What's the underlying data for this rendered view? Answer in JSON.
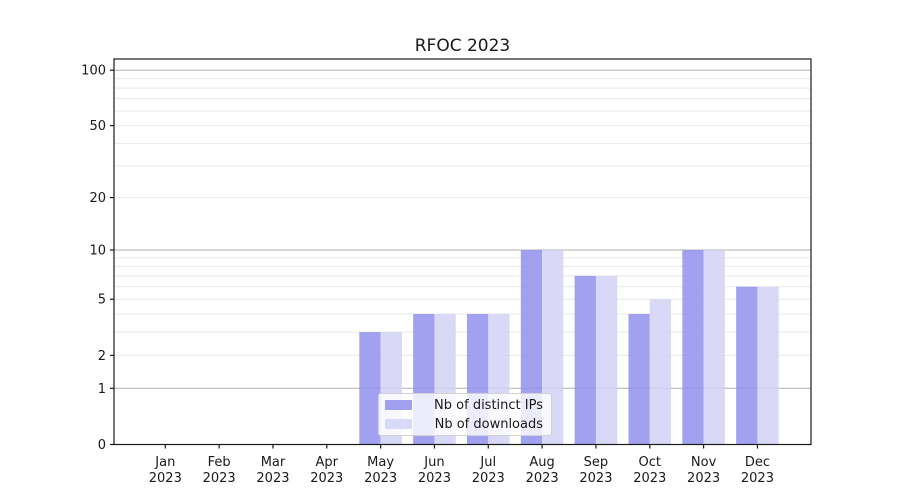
{
  "title": "RFOC 2023",
  "chart_data": {
    "type": "bar",
    "title": "RFOC 2023",
    "months": [
      "Jan",
      "Feb",
      "Mar",
      "Apr",
      "May",
      "Jun",
      "Jul",
      "Aug",
      "Sep",
      "Oct",
      "Nov",
      "Dec"
    ],
    "year": "2023",
    "series": [
      {
        "name": "Nb of distinct IPs",
        "color": "#9191ed",
        "values": [
          0,
          0,
          0,
          0,
          3,
          4,
          4,
          10,
          7,
          4,
          10,
          6
        ]
      },
      {
        "name": "Nb of downloads",
        "color": "#d2d2f6",
        "values": [
          0,
          0,
          0,
          0,
          3,
          4,
          4,
          10,
          7,
          5,
          10,
          6
        ]
      }
    ],
    "yscale": "log1p",
    "yticks": [
      "0",
      "1",
      "2",
      "5",
      "10",
      "20",
      "50",
      "100"
    ],
    "ylim": [
      0,
      115
    ],
    "grid": {
      "major": [
        1,
        10,
        100
      ],
      "minor": [
        2,
        3,
        4,
        5,
        6,
        7,
        8,
        9,
        20,
        30,
        40,
        50,
        60,
        70,
        80,
        90
      ]
    },
    "legend_position": "lower center",
    "colors": {
      "grid_major": "#b0b0b0",
      "grid_minor": "#e9e9e9",
      "spine": "#1a1a1a",
      "text": "#1a1a1a",
      "background": "#ffffff"
    }
  }
}
